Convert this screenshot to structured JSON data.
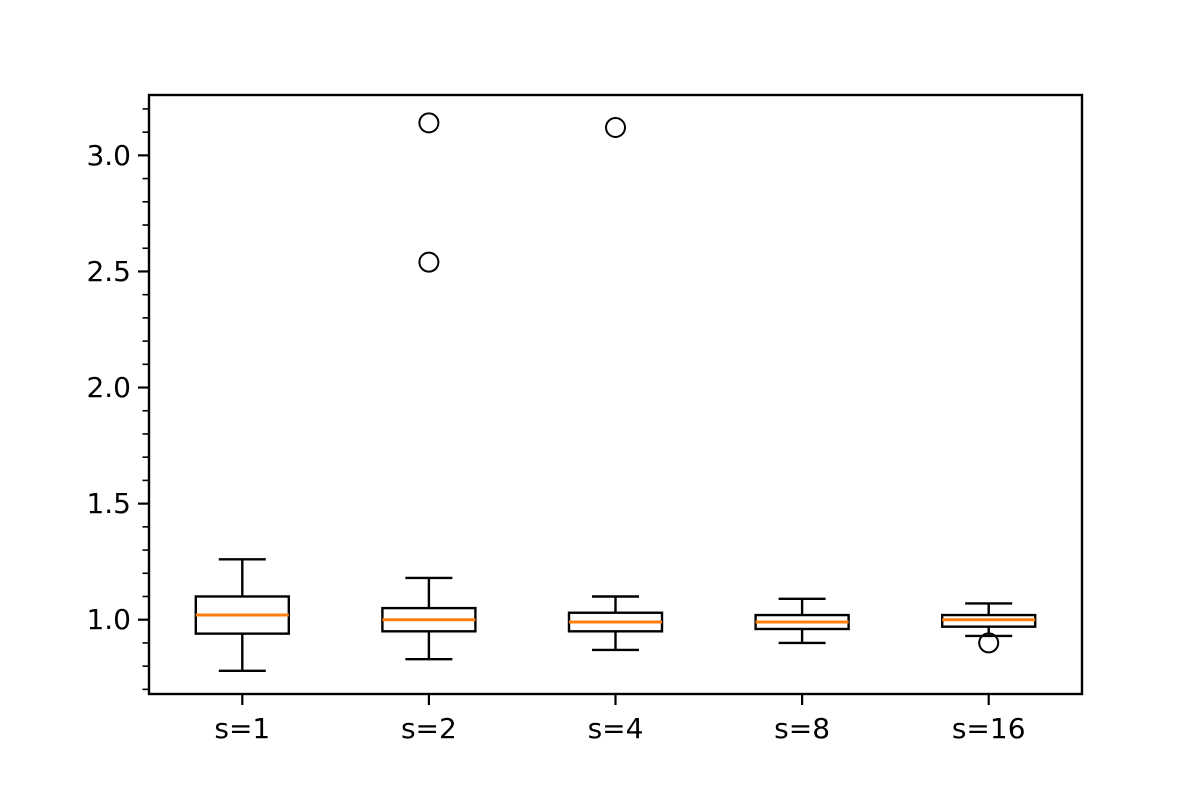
{
  "figure": {
    "title": "",
    "xlabel": "",
    "ylabel": "",
    "background": "#ffffff"
  },
  "chart_data": {
    "type": "boxplot",
    "title": "",
    "xlabel": "",
    "ylabel": "",
    "categories": [
      "s=1",
      "s=2",
      "s=4",
      "s=8",
      "s=16"
    ],
    "series": [
      {
        "label": "s=1",
        "whislo": 0.78,
        "q1": 0.94,
        "med": 1.02,
        "q3": 1.1,
        "whishi": 1.26,
        "fliers": []
      },
      {
        "label": "s=2",
        "whislo": 0.83,
        "q1": 0.95,
        "med": 1.0,
        "q3": 1.05,
        "whishi": 1.18,
        "fliers": [
          2.54,
          3.14
        ]
      },
      {
        "label": "s=4",
        "whislo": 0.87,
        "q1": 0.95,
        "med": 0.99,
        "q3": 1.03,
        "whishi": 1.1,
        "fliers": [
          3.12
        ]
      },
      {
        "label": "s=8",
        "whislo": 0.9,
        "q1": 0.96,
        "med": 0.99,
        "q3": 1.02,
        "whishi": 1.09,
        "fliers": []
      },
      {
        "label": "s=16",
        "whislo": 0.93,
        "q1": 0.97,
        "med": 1.0,
        "q3": 1.02,
        "whishi": 1.07,
        "fliers": [
          0.9
        ]
      }
    ],
    "yticks": [
      1.0,
      1.5,
      2.0,
      2.5,
      3.0
    ],
    "ytick_labels": [
      "1.0",
      "1.5",
      "2.0",
      "2.5",
      "3.0"
    ],
    "minor_tick_step": 0.1,
    "ylim": [
      0.68,
      3.26
    ],
    "xlim": [
      0.5,
      5.5
    ],
    "grid": false,
    "legend": null,
    "colors": {
      "median": "#ff7f0e",
      "box_edge": "#000000",
      "whisker": "#000000",
      "flier_edge": "#000000",
      "axis": "#000000",
      "tick_label": "#000000"
    }
  }
}
